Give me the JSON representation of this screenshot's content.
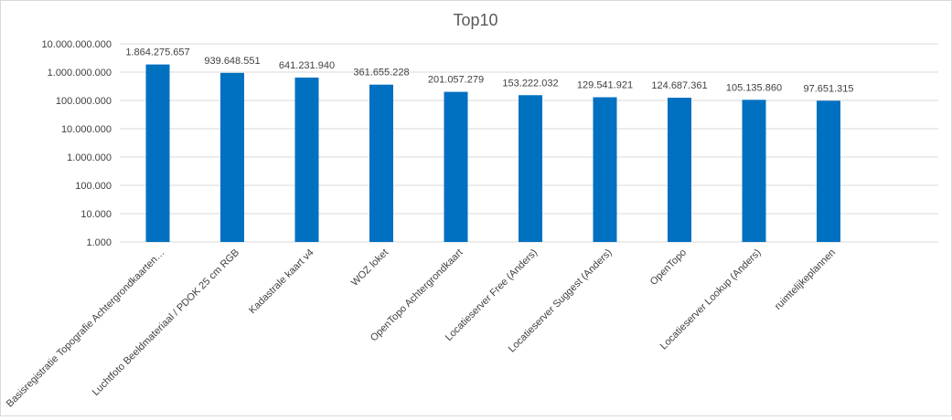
{
  "chart_data": {
    "type": "bar",
    "title": "Top10",
    "xlabel": "",
    "ylabel": "",
    "yscale": "log",
    "ylim": [
      1000,
      10000000000
    ],
    "yticks": [
      1000,
      10000,
      100000,
      1000000,
      10000000,
      100000000,
      1000000000,
      10000000000
    ],
    "ytick_labels": [
      "1.000",
      "10.000",
      "100.000",
      "1.000.000",
      "10.000.000",
      "100.000.000",
      "1.000.000.000",
      "10.000.000.000"
    ],
    "grid": true,
    "legend": "none",
    "bar_color": "#0070C0",
    "categories": [
      "Basisregistratie Topografie Achtergrondkaarten…",
      "Luchtfoto Beeldmateriaal / PDOK 25 cm RGB",
      "Kadastrale kaart v4",
      "WOZ loket",
      "OpenTopo Achtergrondkaart",
      "Locatieserver Free (Anders)",
      "Locatieserver Suggest (Anders)",
      "OpenTopo",
      "Locatieserver Lookup (Anders)",
      "ruimtelijkeplannen"
    ],
    "values": [
      1864275657,
      939648551,
      641231940,
      361655228,
      201057279,
      153222032,
      129541921,
      124687361,
      105135860,
      97651315
    ],
    "data_labels": [
      "1.864.275.657",
      "939.648.551",
      "641.231.940",
      "361.655.228",
      "201.057.279",
      "153.222.032",
      "129.541.921",
      "124.687.361",
      "105.135.860",
      "97.651.315"
    ]
  }
}
